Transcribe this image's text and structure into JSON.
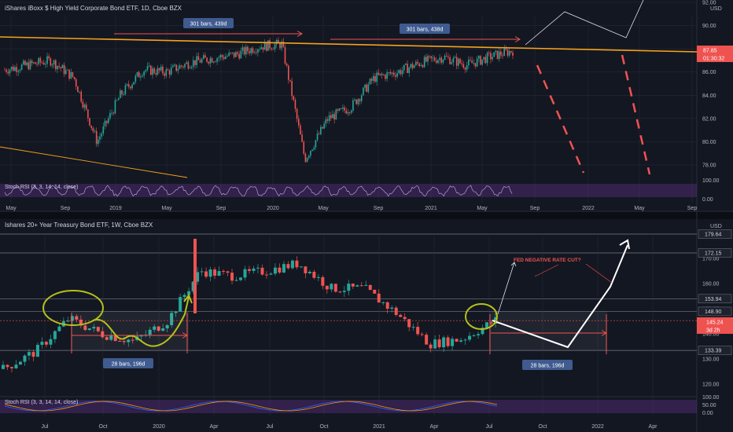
{
  "colors": {
    "bg": "#131722",
    "up": "#26a69a",
    "down": "#ef5350",
    "grid": "#2a2e39",
    "text": "#b2b5be",
    "orange": "#f7a21b",
    "rsi_band": "#4a2a6e",
    "rsi_k": "#7e57c2",
    "rsi_d": "#b39ddb",
    "annot_blue": "#3f5b8f",
    "yellow": "#b5c11a"
  },
  "top": {
    "title": "iShares iBoxx $ High Yield Corporate Bond ETF, 1D, Cboe BZX",
    "currency": "USD",
    "price_label": "87.85",
    "countdown": "01:30:32",
    "price_ticks": [
      "92.00",
      "90.00",
      "88.00",
      "86.00",
      "84.00",
      "82.00",
      "80.00",
      "78.00"
    ],
    "rsi_label": "Stoch RSI (3, 3, 14, 14, close)",
    "rsi_ticks": [
      "100.00",
      "0.00"
    ],
    "time_ticks": [
      "May",
      "Sep",
      "2019",
      "May",
      "Sep",
      "2020",
      "May",
      "Sep",
      "2021",
      "May",
      "Sep",
      "2022",
      "May",
      "Sep"
    ],
    "range_labels": [
      "301 bars, 439d",
      "301 bars, 438d"
    ]
  },
  "bottom": {
    "title": "Ishares 20+ Year Treasury Bond ETF, 1W, Cboe BZX",
    "currency": "USD",
    "price_ticks": [
      "170.00",
      "160.00",
      "150.00",
      "140.00",
      "130.00",
      "120.00"
    ],
    "level_labels": [
      "179.64",
      "172.15",
      "153.94",
      "148.90",
      "133.39"
    ],
    "price_label": "145.24",
    "countdown": "3d 2h",
    "annotation": "FED NEGATIVE RATE CUT?",
    "range_labels": [
      "28 bars, 196d",
      "28 bars, 196d"
    ],
    "rsi_label": "Stoch RSI (3, 3, 14, 14, close)",
    "rsi_ticks": [
      "100.00",
      "50.00",
      "0.00"
    ],
    "time_ticks": [
      "Jul",
      "Oct",
      "2020",
      "Apr",
      "Jul",
      "Oct",
      "2021",
      "Apr",
      "Jul",
      "Oct",
      "2022",
      "Apr"
    ]
  },
  "chart_data": [
    {
      "type": "candlestick",
      "title": "iShares iBoxx $ High Yield Corporate Bond ETF, 1D, Cboe BZX",
      "ylim": [
        77,
        93
      ],
      "x": [
        "2018-05",
        "2018-07",
        "2018-09",
        "2018-11",
        "2018-12",
        "2019-01",
        "2019-03",
        "2019-05",
        "2019-07",
        "2019-09",
        "2019-11",
        "2020-01",
        "2020-02",
        "2020-03",
        "2020-04",
        "2020-05",
        "2020-07",
        "2020-09",
        "2020-11",
        "2021-01",
        "2021-03",
        "2021-05",
        "2021-07"
      ],
      "close": [
        86.2,
        86.6,
        87.0,
        85.5,
        80.0,
        84.0,
        86.2,
        86.0,
        86.8,
        87.2,
        87.5,
        88.2,
        88.4,
        78.5,
        82.0,
        83.0,
        85.5,
        86.0,
        86.8,
        87.3,
        86.6,
        87.3,
        87.85
      ]
    },
    {
      "type": "candlestick",
      "title": "Ishares 20+ Year Treasury Bond ETF, 1W, Cboe BZX",
      "ylim": [
        117,
        182
      ],
      "x": [
        "2019-05",
        "2019-07",
        "2019-08",
        "2019-10",
        "2019-12",
        "2020-02",
        "2020-03",
        "2020-05",
        "2020-07",
        "2020-08",
        "2020-10",
        "2020-12",
        "2021-02",
        "2021-03",
        "2021-05",
        "2021-07"
      ],
      "close": [
        126,
        133,
        146,
        140,
        137,
        145,
        165,
        163,
        165,
        168,
        158,
        158,
        148,
        136,
        138,
        145.24
      ]
    }
  ]
}
